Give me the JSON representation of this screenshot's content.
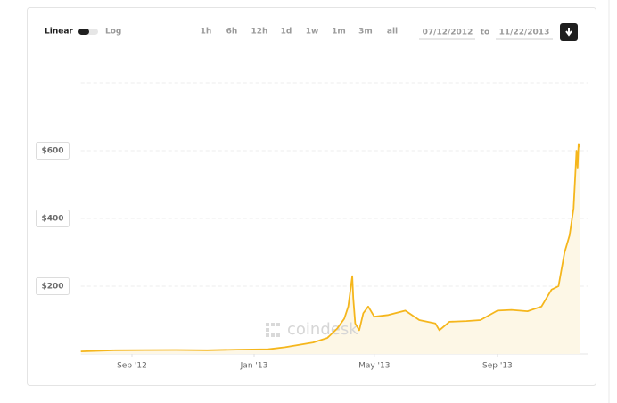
{
  "controls": {
    "linear": "Linear",
    "log": "Log",
    "ranges": [
      "1h",
      "6h",
      "12h",
      "1d",
      "1w",
      "1m",
      "3m",
      "all"
    ],
    "from": "07/12/2012",
    "to": "to",
    "until": "11/22/2013"
  },
  "chart_data": {
    "type": "line",
    "scale": "linear",
    "watermark": "coindesk",
    "color": "#f5b61c",
    "area_color": "#fdf7e6",
    "xlim": [
      "2012-07-12",
      "2013-11-22"
    ],
    "xticks": [
      {
        "value": "2012-09-01",
        "label": "Sep '12"
      },
      {
        "value": "2013-01-01",
        "label": "Jan '13"
      },
      {
        "value": "2013-05-01",
        "label": "May '13"
      },
      {
        "value": "2013-09-01",
        "label": "Sep '13"
      }
    ],
    "ylim": [
      0,
      800
    ],
    "yticks": [
      {
        "value": 200,
        "label": "$200"
      },
      {
        "value": 400,
        "label": "$400"
      },
      {
        "value": 600,
        "label": "$600"
      }
    ],
    "x": [
      "2012-07-12",
      "2012-08-15",
      "2012-09-15",
      "2012-10-15",
      "2012-11-15",
      "2012-12-15",
      "2013-01-15",
      "2013-02-01",
      "2013-02-15",
      "2013-03-01",
      "2013-03-15",
      "2013-03-25",
      "2013-04-01",
      "2013-04-05",
      "2013-04-09",
      "2013-04-10",
      "2013-04-12",
      "2013-04-16",
      "2013-04-20",
      "2013-04-25",
      "2013-05-01",
      "2013-05-15",
      "2013-06-01",
      "2013-06-15",
      "2013-07-01",
      "2013-07-05",
      "2013-07-15",
      "2013-08-01",
      "2013-08-15",
      "2013-09-01",
      "2013-09-15",
      "2013-10-01",
      "2013-10-15",
      "2013-10-25",
      "2013-11-01",
      "2013-11-07",
      "2013-11-12",
      "2013-11-16",
      "2013-11-19",
      "2013-11-20",
      "2013-11-21",
      "2013-11-22"
    ],
    "values": [
      7.5,
      11,
      11.5,
      11.8,
      11,
      13,
      14,
      20,
      27,
      34,
      47,
      75,
      104,
      140,
      230,
      165,
      90,
      70,
      120,
      140,
      110,
      115,
      128,
      100,
      90,
      70,
      95,
      97,
      100,
      128,
      130,
      126,
      140,
      190,
      200,
      300,
      350,
      430,
      600,
      550,
      620,
      610
    ]
  }
}
